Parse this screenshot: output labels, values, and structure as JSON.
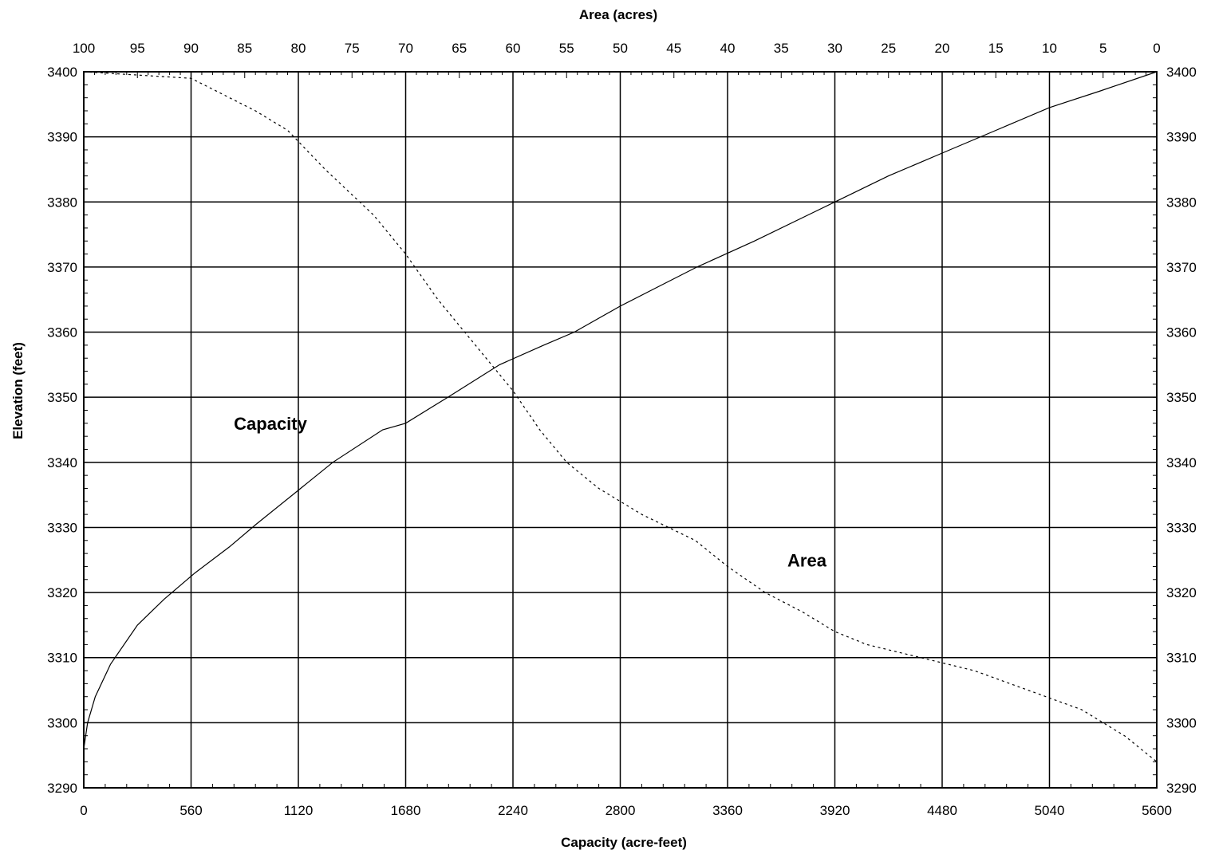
{
  "chart_data": {
    "type": "line",
    "title": "",
    "x_bottom": {
      "label": "Capacity (acre-feet)",
      "range": [
        0,
        5600
      ],
      "ticks": [
        0,
        560,
        1120,
        1680,
        2240,
        2800,
        3360,
        3920,
        4480,
        5040,
        5600
      ],
      "tick_labels": [
        "0",
        "560",
        "1120",
        "1680",
        "2240",
        "2800",
        "3360",
        "3920",
        "4480",
        "5040",
        "5600"
      ]
    },
    "x_top": {
      "label": "Area (acres)",
      "range": [
        100,
        0
      ],
      "ticks": [
        100,
        95,
        90,
        85,
        80,
        75,
        70,
        65,
        60,
        55,
        50,
        45,
        40,
        35,
        30,
        25,
        20,
        15,
        10,
        5,
        0
      ],
      "tick_labels": [
        "100",
        "95",
        "90",
        "85",
        "80",
        "75",
        "70",
        "65",
        "60",
        "55",
        "50",
        "45",
        "40",
        "35",
        "30",
        "25",
        "20",
        "15",
        "10",
        "5",
        "0"
      ]
    },
    "y": {
      "label": "Elevation (feet)",
      "range": [
        3290,
        3400
      ],
      "ticks": [
        3290,
        3300,
        3310,
        3320,
        3330,
        3340,
        3350,
        3360,
        3370,
        3380,
        3390,
        3400
      ],
      "tick_labels": [
        "3290",
        "3300",
        "3310",
        "3320",
        "3330",
        "3340",
        "3350",
        "3360",
        "3370",
        "3380",
        "3390",
        "3400"
      ]
    },
    "grid": true,
    "series": [
      {
        "name": "Capacity",
        "axis": "bottom",
        "style": "solid",
        "points": [
          [
            0,
            3296
          ],
          [
            20,
            3300
          ],
          [
            60,
            3304
          ],
          [
            140,
            3309
          ],
          [
            280,
            3315
          ],
          [
            420,
            3319
          ],
          [
            580,
            3323
          ],
          [
            760,
            3327
          ],
          [
            900,
            3330.5
          ],
          [
            1090,
            3335
          ],
          [
            1300,
            3340
          ],
          [
            1560,
            3345
          ],
          [
            1680,
            3346
          ],
          [
            1900,
            3350
          ],
          [
            2170,
            3355
          ],
          [
            2400,
            3358
          ],
          [
            2560,
            3360
          ],
          [
            2800,
            3364
          ],
          [
            3000,
            3367
          ],
          [
            3200,
            3370
          ],
          [
            3500,
            3374
          ],
          [
            3920,
            3380
          ],
          [
            4200,
            3384
          ],
          [
            4480,
            3387.5
          ],
          [
            4760,
            3391
          ],
          [
            5040,
            3394.5
          ],
          [
            5300,
            3397
          ],
          [
            5600,
            3400
          ]
        ]
      },
      {
        "name": "Area",
        "axis": "top",
        "style": "dashed",
        "points": [
          [
            100,
            3400
          ],
          [
            90,
            3399
          ],
          [
            84,
            3394
          ],
          [
            81,
            3391
          ],
          [
            77.5,
            3385
          ],
          [
            73,
            3378
          ],
          [
            70,
            3372
          ],
          [
            67,
            3365
          ],
          [
            64.5,
            3360
          ],
          [
            62,
            3355
          ],
          [
            60,
            3351
          ],
          [
            57.5,
            3345
          ],
          [
            55,
            3340
          ],
          [
            52,
            3336
          ],
          [
            48,
            3332
          ],
          [
            43,
            3328
          ],
          [
            40,
            3324
          ],
          [
            36.5,
            3320
          ],
          [
            33,
            3317
          ],
          [
            30,
            3314
          ],
          [
            27,
            3312
          ],
          [
            22,
            3310
          ],
          [
            17,
            3308
          ],
          [
            12,
            3305
          ],
          [
            7,
            3302
          ],
          [
            3,
            3298
          ],
          [
            0,
            3294
          ]
        ]
      }
    ],
    "annotations": [
      {
        "text": "Capacity",
        "x": 1120,
        "axis": "bottom",
        "y": 3346
      },
      {
        "text": "Area",
        "x": 3920,
        "axis": "bottom",
        "y": 3325
      }
    ]
  }
}
